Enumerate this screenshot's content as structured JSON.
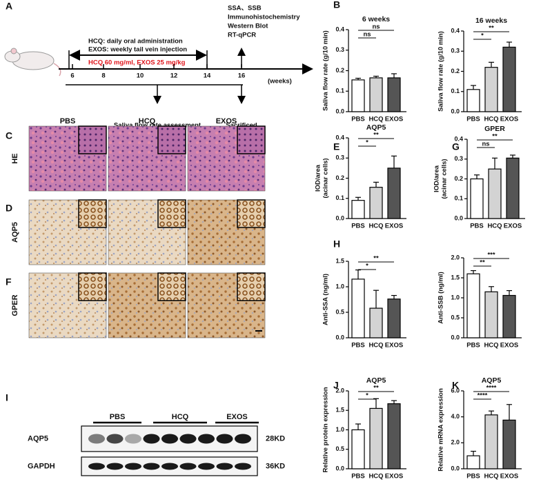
{
  "panel_letters": [
    "A",
    "B",
    "C",
    "D",
    "E",
    "F",
    "G",
    "H",
    "I",
    "J",
    "K"
  ],
  "panel_a": {
    "drug_lines": [
      "HCQ: daily oral administration",
      "EXOS: weekly tail vein injection"
    ],
    "dose": "HCQ 60 mg/ml, EXOS 25 mg/kg",
    "weeks": [
      "6",
      "8",
      "10",
      "12",
      "14",
      "16"
    ],
    "axis_unit": "(weeks)",
    "assays": [
      "SSA、SSB",
      "Immunohistochemistry",
      "Western Blot",
      "RT-qPCR"
    ],
    "saliva": "Saliva flow rate assessment",
    "sacrificed": "Sacrificed"
  },
  "histology": {
    "columns": [
      "PBS",
      "HCQ",
      "EXOS"
    ],
    "rows": [
      "HE",
      "AQP5",
      "GPER"
    ]
  },
  "western_blot": {
    "groups": [
      "PBS",
      "HCQ",
      "EXOS"
    ],
    "proteins": [
      "AQP5",
      "GAPDH"
    ],
    "sizes": [
      "28KD",
      "36KD"
    ]
  },
  "chart_data": [
    {
      "type": "bar",
      "title": "6 weeks",
      "y_label": [
        "Saliva flow rate (g/10 min)"
      ],
      "categories": [
        "PBS",
        "HCQ",
        "EXOS"
      ],
      "values": [
        0.155,
        0.165,
        0.165
      ],
      "errors": [
        0.008,
        0.008,
        0.02
      ],
      "colors": [
        "#ffffff",
        "#d3d3d3",
        "#555555"
      ],
      "ylim": [
        0,
        0.4
      ],
      "yticks": [
        {
          "value": 0,
          "label": "0.0"
        },
        0.1,
        0.2,
        0.3,
        0.4
      ],
      "annotations": [
        "ns",
        "ns"
      ]
    },
    {
      "type": "bar",
      "title": "16 weeks",
      "y_label": [
        "Saliva flow rate (g/10 min)"
      ],
      "categories": [
        "PBS",
        "HCQ",
        "EXOS"
      ],
      "values": [
        0.11,
        0.22,
        0.32
      ],
      "errors": [
        0.02,
        0.025,
        0.025
      ],
      "colors": [
        "#ffffff",
        "#d3d3d3",
        "#555555"
      ],
      "ylim": [
        0,
        0.4
      ],
      "yticks": [
        {
          "value": 0,
          "label": "0.0"
        },
        0.1,
        0.2,
        0.3,
        0.4
      ],
      "annotations": [
        "*",
        "**"
      ]
    },
    {
      "type": "bar",
      "title": "AQP5",
      "y_label": [
        "IOD/area",
        "(acinar cells)"
      ],
      "categories": [
        "PBS",
        "HCQ",
        "EXOS"
      ],
      "values": [
        0.09,
        0.155,
        0.25
      ],
      "errors": [
        0.015,
        0.025,
        0.06
      ],
      "colors": [
        "#ffffff",
        "#d3d3d3",
        "#555555"
      ],
      "ylim": [
        0,
        0.4
      ],
      "yticks": [
        {
          "value": 0,
          "label": "0.0"
        },
        0.1,
        0.2,
        0.3,
        0.4
      ],
      "annotations": [
        "*",
        "**"
      ]
    },
    {
      "type": "bar",
      "title": "GPER",
      "y_label": [
        "IOD/area",
        "(acinar cells)"
      ],
      "categories": [
        "PBS",
        "HCQ",
        "EXOS"
      ],
      "values": [
        0.2,
        0.25,
        0.305
      ],
      "errors": [
        0.02,
        0.055,
        0.015
      ],
      "colors": [
        "#ffffff",
        "#d3d3d3",
        "#555555"
      ],
      "ylim": [
        0,
        0.4
      ],
      "yticks": [
        {
          "value": 0,
          "label": "0.0"
        },
        0.1,
        0.2,
        0.3,
        0.4
      ],
      "annotations": [
        "ns",
        "**"
      ]
    },
    {
      "type": "bar",
      "y_label": [
        "Anti-SSA (ng/ml)"
      ],
      "categories": [
        "PBS",
        "HCQ",
        "EXOS"
      ],
      "values": [
        1.15,
        0.58,
        0.76
      ],
      "errors": [
        0.18,
        0.35,
        0.07
      ],
      "colors": [
        "#ffffff",
        "#d3d3d3",
        "#555555"
      ],
      "ylim": [
        0,
        1.5
      ],
      "yticks": [
        {
          "value": 0,
          "label": "0.0"
        },
        0.5,
        {
          "value": 1,
          "label": "1.0"
        },
        1.5
      ],
      "annotations": [
        "*",
        "**"
      ]
    },
    {
      "type": "bar",
      "y_label": [
        "Anti-SSB (ng/ml)"
      ],
      "categories": [
        "PBS",
        "HCQ",
        "EXOS"
      ],
      "values": [
        1.6,
        1.15,
        1.06
      ],
      "errors": [
        0.08,
        0.13,
        0.12
      ],
      "colors": [
        "#ffffff",
        "#d3d3d3",
        "#555555"
      ],
      "ylim": [
        0,
        2
      ],
      "yticks": [
        {
          "value": 0,
          "label": "0.0"
        },
        0.5,
        {
          "value": 1,
          "label": "1.0"
        },
        1.5,
        {
          "value": 2,
          "label": "2.0"
        }
      ],
      "annotations": [
        "**",
        "***"
      ]
    },
    {
      "type": "bar",
      "title": "AQP5",
      "y_label": [
        "Relative protein expression"
      ],
      "categories": [
        "PBS",
        "HCQ",
        "EXOS"
      ],
      "values": [
        1.0,
        1.55,
        1.67
      ],
      "errors": [
        0.15,
        0.25,
        0.08
      ],
      "colors": [
        "#ffffff",
        "#d3d3d3",
        "#555555"
      ],
      "ylim": [
        0,
        2
      ],
      "yticks": [
        {
          "value": 0,
          "label": "0.0"
        },
        0.5,
        {
          "value": 1,
          "label": "1.0"
        },
        1.5,
        {
          "value": 2,
          "label": "2.0"
        }
      ],
      "annotations": [
        "*",
        "**"
      ]
    },
    {
      "type": "bar",
      "title": "AQP5",
      "y_label": [
        "Relative mRNA expression"
      ],
      "categories": [
        "PBS",
        "HCQ",
        "EXOS"
      ],
      "values": [
        1.0,
        4.15,
        3.75
      ],
      "errors": [
        0.35,
        0.3,
        1.2
      ],
      "colors": [
        "#ffffff",
        "#d3d3d3",
        "#555555"
      ],
      "ylim": [
        0,
        6
      ],
      "yticks": [
        {
          "value": 0,
          "label": "0.0"
        },
        {
          "value": 2,
          "label": "2.0"
        },
        {
          "value": 4,
          "label": "4.0"
        },
        {
          "value": 6,
          "label": "6.0"
        }
      ],
      "annotations": [
        "****",
        "****"
      ]
    }
  ]
}
